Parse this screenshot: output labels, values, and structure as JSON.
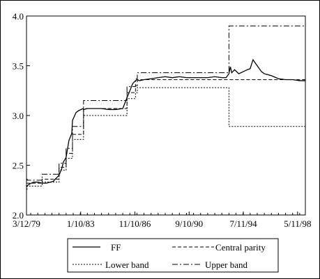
{
  "chart_data": {
    "type": "line",
    "title": "",
    "xlabel": "",
    "ylabel": "",
    "ylim": [
      2.0,
      4.0
    ],
    "y_ticks": [
      "2.0",
      "2.5",
      "3.0",
      "3.5",
      "4.0"
    ],
    "x_ticks": [
      "3/12/79",
      "1/10/83",
      "11/10/86",
      "9/10/90",
      "7/11/94",
      "5/11/98"
    ],
    "x_tick_years": [
      1979.2,
      1983.03,
      1986.86,
      1990.69,
      1994.52,
      1998.35
    ],
    "xlim": [
      1979.2,
      1998.9
    ],
    "legend_placement": "bottom",
    "grid": false,
    "series": [
      {
        "name": "FF",
        "style": "solid",
        "x": [
          1979.2,
          1979.4,
          1979.7,
          1980.0,
          1980.3,
          1980.6,
          1980.9,
          1981.1,
          1981.3,
          1981.5,
          1981.7,
          1981.8,
          1982.0,
          1982.2,
          1982.4,
          1982.45,
          1982.7,
          1982.9,
          1983.2,
          1983.23,
          1983.5,
          1984.0,
          1984.5,
          1985.0,
          1985.5,
          1986.0,
          1986.3,
          1986.45,
          1986.7,
          1986.9,
          1987.0,
          1987.2,
          1987.5,
          1988.0,
          1988.5,
          1989.0,
          1989.5,
          1990.0,
          1990.5,
          1991.0,
          1991.5,
          1992.0,
          1992.5,
          1993.0,
          1993.3,
          1993.5,
          1993.6,
          1993.7,
          1993.9,
          1994.2,
          1994.5,
          1994.8,
          1995.0,
          1995.2,
          1995.4,
          1995.6,
          1995.8,
          1996.0,
          1996.5,
          1997.0,
          1997.5,
          1998.0,
          1998.5,
          1998.9
        ],
        "y": [
          2.29,
          2.31,
          2.33,
          2.33,
          2.32,
          2.32,
          2.33,
          2.34,
          2.37,
          2.4,
          2.47,
          2.53,
          2.58,
          2.75,
          2.82,
          2.95,
          3.03,
          3.05,
          3.07,
          3.06,
          3.07,
          3.07,
          3.07,
          3.06,
          3.06,
          3.07,
          3.18,
          3.23,
          3.32,
          3.35,
          3.36,
          3.35,
          3.36,
          3.37,
          3.38,
          3.39,
          3.38,
          3.39,
          3.38,
          3.38,
          3.38,
          3.38,
          3.39,
          3.38,
          3.38,
          3.42,
          3.49,
          3.43,
          3.46,
          3.42,
          3.44,
          3.46,
          3.47,
          3.56,
          3.52,
          3.48,
          3.44,
          3.42,
          3.4,
          3.37,
          3.36,
          3.36,
          3.35,
          3.35
        ]
      },
      {
        "name": "Central parity",
        "style": "dash",
        "x": [
          1979.2,
          1980.3,
          1980.3,
          1981.5,
          1981.5,
          1982.0,
          1982.0,
          1982.45,
          1982.45,
          1983.23,
          1983.23,
          1986.3,
          1986.3,
          1986.9,
          1986.9,
          1987.03,
          1987.03,
          1998.9
        ],
        "y": [
          2.32,
          2.32,
          2.36,
          2.36,
          2.48,
          2.48,
          2.62,
          2.62,
          2.81,
          2.81,
          3.07,
          3.07,
          3.23,
          3.23,
          3.3,
          3.3,
          3.36,
          3.36
        ]
      },
      {
        "name": "Lower band",
        "style": "dot",
        "x": [
          1979.2,
          1979.25,
          1979.25,
          1980.3,
          1980.3,
          1981.5,
          1981.5,
          1982.0,
          1982.0,
          1982.45,
          1982.45,
          1983.23,
          1983.23,
          1986.3,
          1986.3,
          1986.9,
          1986.9,
          1987.03,
          1987.03,
          1993.5,
          1993.5,
          1998.9
        ],
        "y": [
          2.26,
          2.26,
          2.29,
          2.29,
          2.33,
          2.33,
          2.45,
          2.45,
          2.57,
          2.57,
          2.76,
          2.76,
          3.0,
          3.0,
          3.17,
          3.17,
          3.23,
          3.23,
          3.28,
          3.28,
          2.89,
          2.89
        ]
      },
      {
        "name": "Upper band",
        "style": "dashdot",
        "x": [
          1979.2,
          1979.25,
          1979.25,
          1980.3,
          1980.3,
          1981.5,
          1981.5,
          1982.0,
          1982.0,
          1982.45,
          1982.45,
          1983.23,
          1983.23,
          1986.3,
          1986.3,
          1986.9,
          1986.9,
          1987.03,
          1987.03,
          1993.5,
          1993.5,
          1998.9
        ],
        "y": [
          2.36,
          2.36,
          2.35,
          2.35,
          2.41,
          2.41,
          2.52,
          2.52,
          2.67,
          2.67,
          2.89,
          2.89,
          3.15,
          3.15,
          3.29,
          3.29,
          3.37,
          3.37,
          3.43,
          3.43,
          3.9,
          3.9
        ]
      }
    ],
    "legend": {
      "entries": [
        "FF",
        "Central parity",
        "Lower band",
        "Upper band"
      ]
    }
  }
}
